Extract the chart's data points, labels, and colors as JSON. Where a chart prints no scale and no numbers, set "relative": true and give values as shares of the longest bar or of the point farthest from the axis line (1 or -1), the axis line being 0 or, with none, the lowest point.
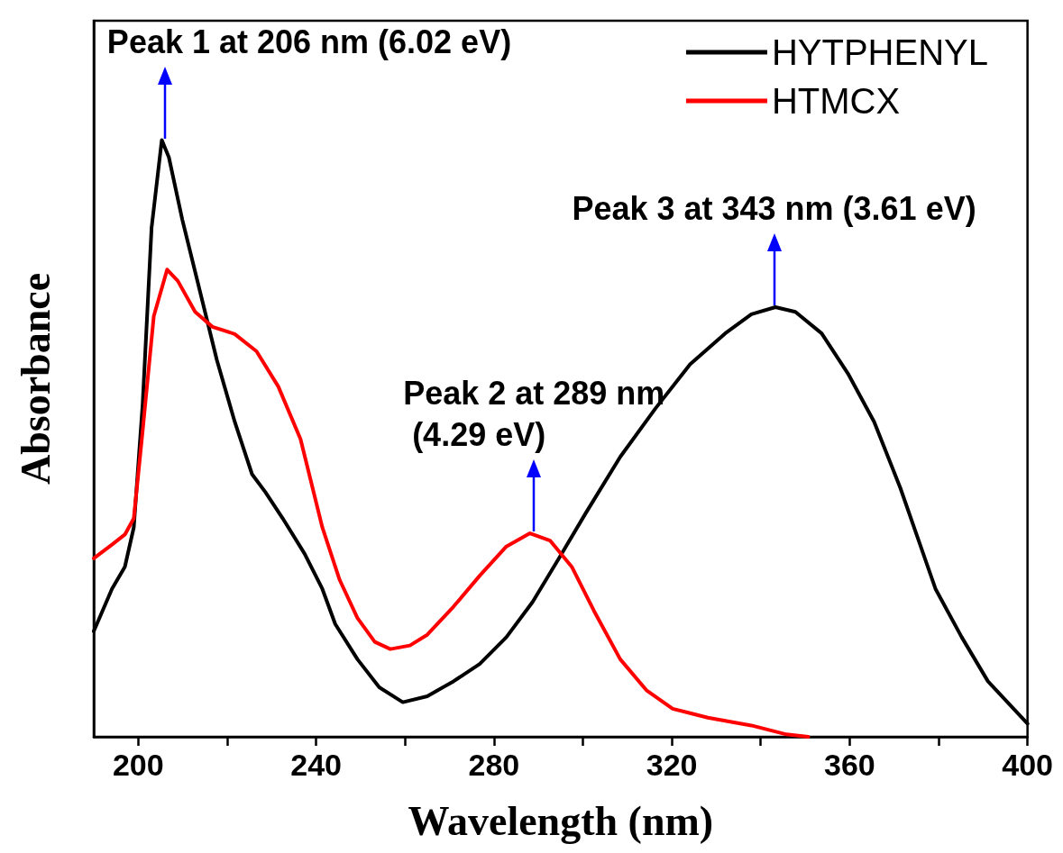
{
  "chart_data": {
    "type": "line",
    "relative": true,
    "xlabel": "Wavelength (nm)",
    "ylabel": "Absorbance",
    "xlim": [
      190,
      400
    ],
    "xticks": [
      200,
      {
        "value": 220,
        "label": null
      },
      240,
      {
        "value": 260,
        "label": null
      },
      280,
      {
        "value": 300,
        "label": null
      },
      320,
      {
        "value": 340,
        "label": null
      },
      360,
      {
        "value": 380,
        "label": null
      },
      400
    ],
    "legend": "top right",
    "grid": false,
    "marker": "none",
    "line_style": "solid",
    "series": [
      {
        "name": "HYTPHENYL",
        "color": "#000000",
        "x": [
          190,
          194.1,
          197,
          199,
          201,
          203,
          205.3,
          206.9,
          209.9,
          213.8,
          217.7,
          221.7,
          225.6,
          228.6,
          232.5,
          237.4,
          241.4,
          244.3,
          249.3,
          254.2,
          259.5,
          265,
          270.9,
          276.8,
          282.8,
          288.7,
          294.6,
          300.5,
          308.4,
          316.3,
          324.1,
          332,
          337.9,
          343.3,
          347.8,
          353.7,
          359.6,
          365.5,
          371.4,
          379.3,
          385.2,
          391.1,
          400
        ],
        "values": [
          0.177,
          0.248,
          0.285,
          0.351,
          0.558,
          0.853,
          1.0,
          0.971,
          0.867,
          0.749,
          0.631,
          0.528,
          0.44,
          0.41,
          0.366,
          0.307,
          0.248,
          0.189,
          0.13,
          0.083,
          0.058,
          0.068,
          0.093,
          0.122,
          0.167,
          0.226,
          0.299,
          0.373,
          0.469,
          0.55,
          0.624,
          0.676,
          0.708,
          0.72,
          0.712,
          0.676,
          0.609,
          0.528,
          0.417,
          0.248,
          0.167,
          0.093,
          0.022
        ]
      },
      {
        "name": "HTMCX",
        "color": "#ff0000",
        "x": [
          190,
          194.1,
          197,
          199,
          201,
          203.5,
          206.5,
          208.9,
          212.8,
          216.7,
          221.7,
          226.6,
          231.5,
          236.5,
          241.4,
          245.3,
          249.3,
          253.2,
          256.7,
          261.1,
          265,
          270.9,
          276.8,
          282.8,
          288.1,
          292.6,
          297.5,
          302.5,
          308.4,
          314.3,
          320.2,
          328.1,
          337.9,
          345.8,
          350.7
        ],
        "values": [
          0.299,
          0.322,
          0.339,
          0.366,
          0.513,
          0.705,
          0.783,
          0.764,
          0.712,
          0.687,
          0.675,
          0.646,
          0.587,
          0.499,
          0.351,
          0.263,
          0.199,
          0.159,
          0.147,
          0.153,
          0.171,
          0.218,
          0.27,
          0.319,
          0.341,
          0.329,
          0.285,
          0.211,
          0.13,
          0.078,
          0.047,
          0.032,
          0.019,
          0.004,
          0
        ]
      }
    ],
    "annotations": [
      {
        "text": "Peak 1 at 206 nm (6.02 eV)",
        "x": 206,
        "y": 1.0
      },
      {
        "text": "Peak 2 at 289 nm\n (4.29 eV)",
        "x": 289,
        "y": 0.341
      },
      {
        "text": "Peak 3 at 343 nm (3.61 eV)",
        "x": 343,
        "y": 0.72
      }
    ]
  }
}
